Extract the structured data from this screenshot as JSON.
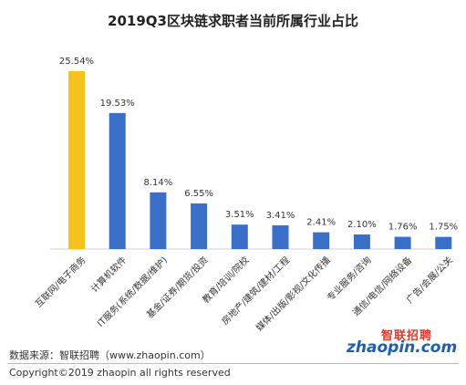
{
  "chart_data": {
    "type": "bar",
    "title": "2019Q3区块链求职者当前所属行业占比",
    "categories": [
      "互联网/电子商务",
      "计算机软件",
      "IT服务(系统/数据/维护)",
      "基金/证券/期货/投资",
      "教育/培训/院校",
      "房地产/建筑/建材/工程",
      "媒体/出版/影视/文化传播",
      "专业服务/咨询",
      "通信/电信/网络设备",
      "广告/会展/公关"
    ],
    "values": [
      25.54,
      19.53,
      8.14,
      6.55,
      3.51,
      3.41,
      2.41,
      2.1,
      1.76,
      1.75
    ],
    "value_labels": [
      "25.54%",
      "19.53%",
      "8.14%",
      "6.55%",
      "3.51%",
      "3.41%",
      "2.41%",
      "2.10%",
      "1.76%",
      "1.75%"
    ],
    "bar_colors": [
      "#f7c21b",
      "#3a6fc9",
      "#3a6fc9",
      "#3a6fc9",
      "#3a6fc9",
      "#3a6fc9",
      "#3a6fc9",
      "#3a6fc9",
      "#3a6fc9",
      "#3a6fc9"
    ],
    "ylim": [
      0,
      25.54
    ],
    "grid": false,
    "xlabel": "",
    "ylabel": ""
  },
  "footer": {
    "source": "数据来源：智联招聘（www.zhaopin.com）",
    "copyright": "Copyright©2019 zhaopin all rights reserved"
  },
  "logo": {
    "name_cn": "智联招聘",
    "name_en": "zhaopin.com"
  }
}
